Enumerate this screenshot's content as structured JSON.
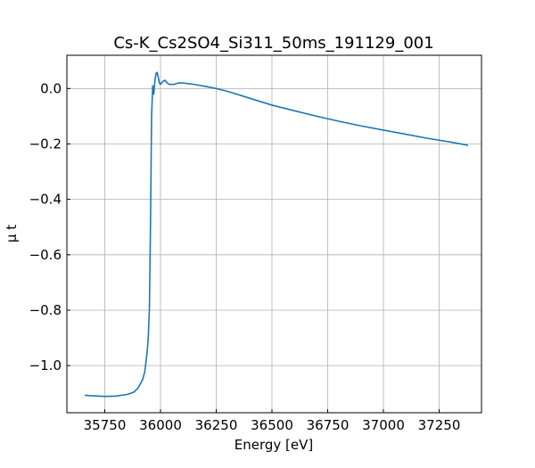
{
  "chart_data": {
    "type": "line",
    "title": "Cs-K_Cs2SO4_Si311_50ms_191129_001",
    "xlabel": "Energy [eV]",
    "ylabel": "μ t",
    "xlim": [
      35580,
      37440
    ],
    "ylim": [
      -1.17,
      0.12
    ],
    "xticks": [
      35750,
      36000,
      36250,
      36500,
      36750,
      37000,
      37250
    ],
    "xtick_labels": [
      "35750",
      "36000",
      "36250",
      "36500",
      "36750",
      "37000",
      "37250"
    ],
    "yticks": [
      -1.0,
      -0.8,
      -0.6,
      -0.4,
      -0.2,
      0.0
    ],
    "ytick_labels": [
      "−1.0",
      "−0.8",
      "−0.6",
      "−0.4",
      "−0.2",
      "0.0"
    ],
    "grid": true,
    "series": [
      {
        "color": "#1f77b4",
        "x": [
          35660,
          35700,
          35750,
          35800,
          35850,
          35880,
          35900,
          35920,
          35930,
          35940,
          35945,
          35950,
          35955,
          35960,
          35965,
          35970,
          35975,
          35980,
          35985,
          35990,
          35995,
          36000,
          36010,
          36020,
          36030,
          36040,
          36060,
          36080,
          36100,
          36120,
          36150,
          36200,
          36250,
          36300,
          36400,
          36500,
          36600,
          36700,
          36800,
          36900,
          37000,
          37100,
          37200,
          37300,
          37380
        ],
        "y": [
          -1.107,
          -1.109,
          -1.111,
          -1.11,
          -1.104,
          -1.096,
          -1.08,
          -1.05,
          -1.02,
          -0.95,
          -0.9,
          -0.8,
          -0.5,
          -0.1,
          0.01,
          -0.02,
          0.03,
          0.055,
          0.058,
          0.04,
          0.02,
          0.015,
          0.025,
          0.03,
          0.02,
          0.015,
          0.015,
          0.02,
          0.02,
          0.018,
          0.015,
          0.008,
          0.0,
          -0.01,
          -0.035,
          -0.06,
          -0.08,
          -0.1,
          -0.118,
          -0.135,
          -0.15,
          -0.165,
          -0.18,
          -0.193,
          -0.205
        ]
      }
    ]
  }
}
